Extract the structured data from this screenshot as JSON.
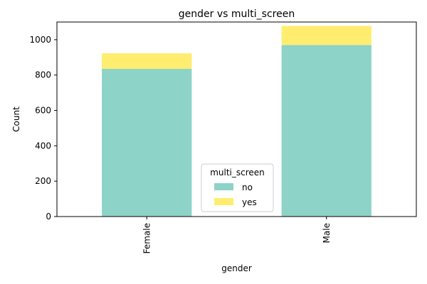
{
  "chart_data": {
    "type": "bar",
    "stacked": true,
    "title": "gender vs multi_screen",
    "xlabel": "gender",
    "ylabel": "Count",
    "categories": [
      "Female",
      "Male"
    ],
    "series": [
      {
        "name": "no",
        "values": [
          835,
          970
        ],
        "color": "#8dd3c7"
      },
      {
        "name": "yes",
        "values": [
          88,
          108
        ],
        "color": "#ffed6f"
      }
    ],
    "ylim": [
      0,
      1100
    ],
    "yticks": [
      0,
      200,
      400,
      600,
      800,
      1000
    ],
    "grid": false,
    "legend": {
      "title": "multi_screen",
      "placement": "lower-center"
    }
  }
}
